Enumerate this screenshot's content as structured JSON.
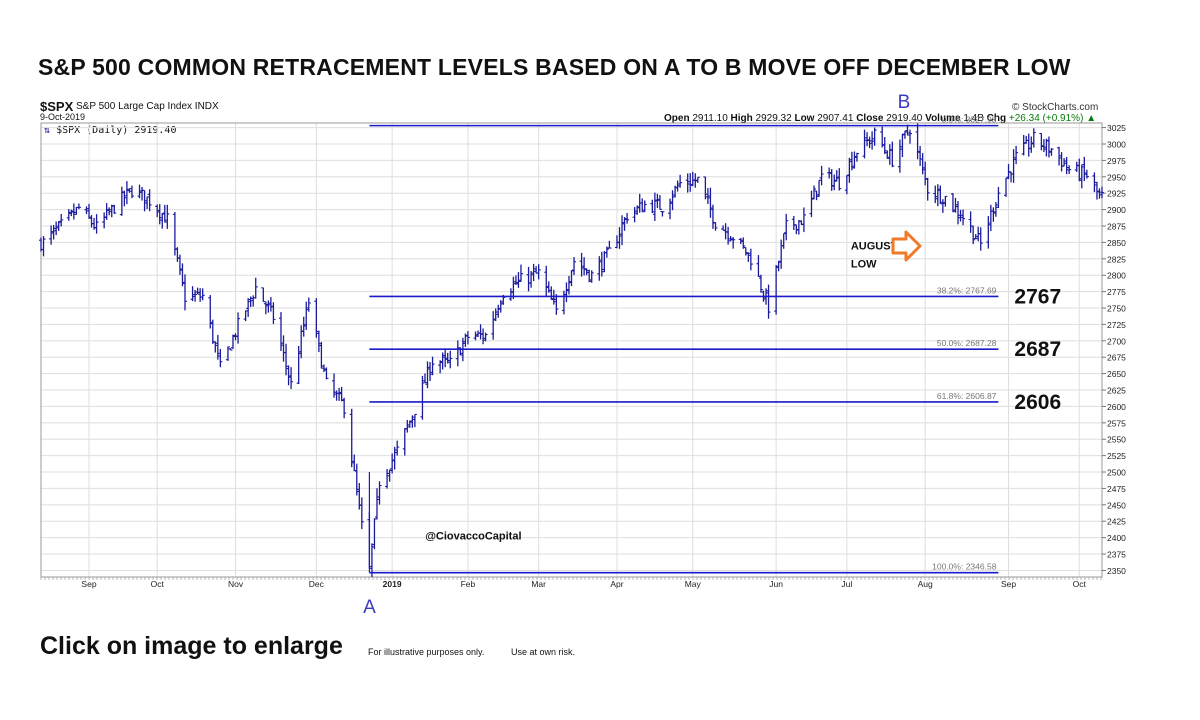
{
  "title": "S&P 500 COMMON RETRACEMENT LEVELS BASED ON A TO B MOVE OFF DECEMBER LOW",
  "header": {
    "ticker": "$SPX",
    "description": "S&P 500 Large Cap Index INDX",
    "date": "9-Oct-2019",
    "legend": "$SPX (Daily) 2919.40",
    "source": "© StockCharts.com",
    "ohlc": {
      "open_label": "Open",
      "open": "2911.10",
      "high_label": "High",
      "high": "2929.32",
      "low_label": "Low",
      "low": "2907.41",
      "close_label": "Close",
      "close": "2919.40",
      "volume_label": "Volume",
      "volume": "1.4B",
      "chg_label": "Chg",
      "chg": "+26.34 (+0.91%)"
    }
  },
  "footer": {
    "click": "Click on image to enlarge",
    "note1": "For illustrative purposes only.",
    "note2": "Use at own risk."
  },
  "chart_data": {
    "type": "ohlc",
    "ylim": [
      2340,
      3032
    ],
    "yticks": [
      2350,
      2375,
      2400,
      2425,
      2450,
      2475,
      2500,
      2525,
      2550,
      2575,
      2600,
      2625,
      2650,
      2675,
      2700,
      2725,
      2750,
      2775,
      2800,
      2825,
      2850,
      2875,
      2900,
      2925,
      2950,
      2975,
      3000,
      3025
    ],
    "xtick_labels": [
      "Sep",
      "Oct",
      "Nov",
      "Dec",
      "2019",
      "Feb",
      "Mar",
      "Apr",
      "May",
      "Jun",
      "Jul",
      "Aug",
      "Sep",
      "Oct"
    ],
    "xtick_dates": [
      "2018-09-04",
      "2018-10-01",
      "2018-11-01",
      "2018-12-03",
      "2019-01-02",
      "2019-02-01",
      "2019-03-01",
      "2019-04-01",
      "2019-05-01",
      "2019-06-03",
      "2019-07-01",
      "2019-08-01",
      "2019-09-03",
      "2019-10-01"
    ],
    "x_range": [
      "2018-08-16",
      "2019-10-10"
    ],
    "grid": true,
    "series": [
      {
        "weekly_closes": [
          {
            "date": "2018-08-17",
            "close": 2850
          },
          {
            "date": "2018-08-24",
            "close": 2875
          },
          {
            "date": "2018-08-31",
            "close": 2902
          },
          {
            "date": "2018-09-07",
            "close": 2872
          },
          {
            "date": "2018-09-14",
            "close": 2904
          },
          {
            "date": "2018-09-21",
            "close": 2930
          },
          {
            "date": "2018-09-28",
            "close": 2914
          },
          {
            "date": "2018-10-05",
            "close": 2885
          },
          {
            "date": "2018-10-12",
            "close": 2767
          },
          {
            "date": "2018-10-19",
            "close": 2768
          },
          {
            "date": "2018-10-26",
            "close": 2658
          },
          {
            "date": "2018-11-02",
            "close": 2723
          },
          {
            "date": "2018-11-09",
            "close": 2781
          },
          {
            "date": "2018-11-16",
            "close": 2736
          },
          {
            "date": "2018-11-23",
            "close": 2633
          },
          {
            "date": "2018-11-30",
            "close": 2760
          },
          {
            "date": "2018-12-07",
            "close": 2633
          },
          {
            "date": "2018-12-14",
            "close": 2600
          },
          {
            "date": "2018-12-21",
            "close": 2417
          },
          {
            "date": "2018-12-24",
            "close": 2351
          },
          {
            "date": "2018-12-28",
            "close": 2486
          },
          {
            "date": "2019-01-04",
            "close": 2532
          },
          {
            "date": "2019-01-11",
            "close": 2596
          },
          {
            "date": "2019-01-18",
            "close": 2670
          },
          {
            "date": "2019-01-25",
            "close": 2665
          },
          {
            "date": "2019-02-01",
            "close": 2706
          },
          {
            "date": "2019-02-08",
            "close": 2708
          },
          {
            "date": "2019-02-15",
            "close": 2775
          },
          {
            "date": "2019-02-22",
            "close": 2792
          },
          {
            "date": "2019-03-01",
            "close": 2803
          },
          {
            "date": "2019-03-08",
            "close": 2743
          },
          {
            "date": "2019-03-15",
            "close": 2822
          },
          {
            "date": "2019-03-22",
            "close": 2800
          },
          {
            "date": "2019-03-29",
            "close": 2834
          },
          {
            "date": "2019-04-05",
            "close": 2892
          },
          {
            "date": "2019-04-12",
            "close": 2907
          },
          {
            "date": "2019-04-19",
            "close": 2905
          },
          {
            "date": "2019-04-26",
            "close": 2940
          },
          {
            "date": "2019-05-03",
            "close": 2945
          },
          {
            "date": "2019-05-10",
            "close": 2881
          },
          {
            "date": "2019-05-17",
            "close": 2859
          },
          {
            "date": "2019-05-24",
            "close": 2826
          },
          {
            "date": "2019-05-31",
            "close": 2752
          },
          {
            "date": "2019-06-07",
            "close": 2873
          },
          {
            "date": "2019-06-14",
            "close": 2886
          },
          {
            "date": "2019-06-21",
            "close": 2950
          },
          {
            "date": "2019-06-28",
            "close": 2942
          },
          {
            "date": "2019-07-05",
            "close": 2990
          },
          {
            "date": "2019-07-12",
            "close": 3013
          },
          {
            "date": "2019-07-19",
            "close": 2976
          },
          {
            "date": "2019-07-26",
            "close": 3025
          },
          {
            "date": "2019-08-02",
            "close": 2932
          },
          {
            "date": "2019-08-09",
            "close": 2918
          },
          {
            "date": "2019-08-16",
            "close": 2889
          },
          {
            "date": "2019-08-23",
            "close": 2847
          },
          {
            "date": "2019-08-30",
            "close": 2926
          },
          {
            "date": "2019-09-06",
            "close": 2979
          },
          {
            "date": "2019-09-13",
            "close": 3007
          },
          {
            "date": "2019-09-20",
            "close": 2992
          },
          {
            "date": "2019-09-27",
            "close": 2961
          },
          {
            "date": "2019-10-04",
            "close": 2952
          },
          {
            "date": "2019-10-09",
            "close": 2919
          }
        ]
      }
    ],
    "retracement_levels": [
      {
        "label": "0.0%: 3027.98",
        "value": 3027.98
      },
      {
        "label": "38.2%: 2767.69",
        "value": 2767.69,
        "callout": "2767"
      },
      {
        "label": "50.0%: 2687.28",
        "value": 2687.28,
        "callout": "2687"
      },
      {
        "label": "61.8%: 2606.87",
        "value": 2606.87,
        "callout": "2606"
      },
      {
        "label": "100.0%: 2346.58",
        "value": 2346.58
      }
    ],
    "annotations": [
      {
        "text": "A",
        "date": "2018-12-26",
        "value": 2346
      },
      {
        "text": "B",
        "date": "2019-07-26",
        "value": 3028
      },
      {
        "text": "AUGUST",
        "date": "2019-07-01",
        "value": 2845
      },
      {
        "text": "LOW",
        "date": "2019-07-01",
        "value": 2818
      },
      {
        "text": "@CiovaccoCapital",
        "date": "2019-01-23",
        "value": 2403
      }
    ],
    "colors": {
      "bars": "#1a1a9c",
      "levels": "#1a1acc",
      "grid": "#dedede",
      "arrow": "#f07a2a",
      "annot": "#3b3bc4"
    }
  }
}
